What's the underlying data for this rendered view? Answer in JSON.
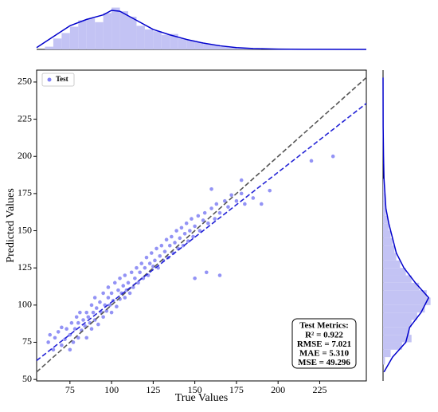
{
  "chart_data": [
    {
      "type": "scatter",
      "xlabel": "True Values",
      "ylabel": "Predicted Values",
      "xlim": [
        55,
        253
      ],
      "ylim": [
        49,
        258
      ],
      "xticks": [
        75,
        100,
        125,
        150,
        175,
        200,
        225
      ],
      "yticks": [
        50,
        75,
        100,
        125,
        150,
        175,
        200,
        225,
        250
      ],
      "legend": "upper left",
      "series": [
        {
          "name": "Test",
          "color": "#4b4bef",
          "x": [
            62,
            63,
            65,
            66,
            68,
            70,
            70,
            72,
            73,
            75,
            75,
            76,
            77,
            78,
            79,
            80,
            80,
            81,
            82,
            83,
            84,
            85,
            85,
            86,
            87,
            88,
            88,
            89,
            90,
            90,
            91,
            92,
            93,
            94,
            95,
            95,
            96,
            97,
            98,
            98,
            99,
            100,
            100,
            101,
            102,
            103,
            104,
            105,
            105,
            106,
            107,
            108,
            108,
            109,
            110,
            111,
            112,
            113,
            114,
            115,
            116,
            117,
            118,
            119,
            120,
            121,
            122,
            123,
            124,
            125,
            126,
            127,
            128,
            129,
            130,
            131,
            132,
            133,
            134,
            135,
            136,
            137,
            138,
            139,
            140,
            141,
            142,
            143,
            144,
            145,
            146,
            147,
            148,
            149,
            150,
            152,
            153,
            155,
            156,
            158,
            160,
            162,
            163,
            165,
            168,
            170,
            172,
            175,
            178,
            180,
            185,
            190,
            195,
            220,
            233,
            165,
            157,
            150,
            160,
            178
          ],
          "y": [
            75,
            80,
            70,
            78,
            82,
            73,
            85,
            77,
            84,
            80,
            70,
            88,
            75,
            84,
            92,
            78,
            88,
            95,
            83,
            90,
            86,
            78,
            95,
            92,
            88,
            100,
            84,
            95,
            90,
            105,
            98,
            87,
            102,
            95,
            92,
            108,
            100,
            96,
            105,
            112,
            100,
            95,
            108,
            103,
            115,
            99,
            110,
            104,
            118,
            108,
            113,
            105,
            120,
            110,
            115,
            108,
            122,
            112,
            118,
            125,
            115,
            122,
            128,
            118,
            125,
            132,
            120,
            128,
            135,
            126,
            130,
            138,
            125,
            133,
            140,
            130,
            136,
            144,
            132,
            140,
            146,
            135,
            142,
            150,
            138,
            145,
            152,
            140,
            148,
            155,
            143,
            150,
            158,
            146,
            153,
            160,
            150,
            157,
            162,
            155,
            165,
            158,
            168,
            162,
            170,
            166,
            174,
            170,
            175,
            168,
            172,
            168,
            177,
            197,
            200,
            120,
            122,
            118,
            178,
            184
          ]
        }
      ],
      "lines": [
        {
          "x": [
            55,
            253
          ],
          "y": [
            55,
            253
          ],
          "color": "#555555",
          "dash": true
        },
        {
          "x": [
            55,
            253
          ],
          "y": [
            62.7,
            235.6
          ],
          "color": "#2323d6",
          "dash": true
        }
      ],
      "annotation": {
        "title": "Test Metrics:",
        "lines": [
          "R² = 0.922",
          "RMSE = 7.021",
          "MAE = 5.310",
          "MSE = 49.296"
        ]
      }
    },
    {
      "type": "histogram",
      "orientation": "vertical",
      "color": "#c3c3f4",
      "kde_color": "#0000cc",
      "ylim": [
        0,
        50
      ],
      "bins": [
        60,
        65,
        70,
        75,
        80,
        85,
        90,
        95,
        100,
        105,
        110,
        115,
        120,
        125,
        130,
        135,
        140,
        145,
        150,
        155,
        160,
        165,
        170,
        175,
        180,
        185,
        190
      ],
      "counts": [
        3,
        12,
        18,
        25,
        32,
        34,
        30,
        40,
        46,
        42,
        36,
        26,
        22,
        20,
        16,
        17,
        12,
        10,
        8,
        6,
        5,
        3,
        2,
        1,
        1,
        1
      ],
      "kde": {
        "x": [
          55,
          65,
          75,
          85,
          95,
          100,
          105,
          115,
          125,
          135,
          145,
          155,
          165,
          175,
          185,
          200,
          220,
          253
        ],
        "y": [
          2,
          14,
          26,
          33,
          38,
          43,
          42,
          32,
          22,
          16,
          11,
          7,
          4,
          2,
          1,
          0.3,
          0.1,
          0
        ]
      }
    },
    {
      "type": "histogram",
      "orientation": "horizontal",
      "color": "#c3c3f4",
      "kde_color": "#0000cc",
      "xlim": [
        0,
        52
      ],
      "bins": [
        60,
        65,
        70,
        75,
        80,
        85,
        90,
        95,
        100,
        105,
        110,
        115,
        120,
        125,
        130,
        135,
        140,
        145,
        150,
        155,
        160,
        165,
        170,
        175,
        180,
        185,
        190,
        195,
        200
      ],
      "counts": [
        2,
        8,
        20,
        30,
        28,
        30,
        36,
        44,
        50,
        46,
        38,
        30,
        24,
        18,
        14,
        12,
        10,
        8,
        6,
        5,
        3,
        2,
        2,
        1,
        1,
        0,
        0,
        1
      ],
      "kde": {
        "x": [
          55,
          65,
          75,
          85,
          95,
          105,
          115,
          125,
          135,
          145,
          155,
          165,
          175,
          185,
          200,
          220,
          253
        ],
        "y": [
          1,
          10,
          24,
          28,
          40,
          48,
          34,
          22,
          14,
          10,
          6,
          3,
          2,
          1,
          0.5,
          0.1,
          0
        ]
      }
    }
  ]
}
